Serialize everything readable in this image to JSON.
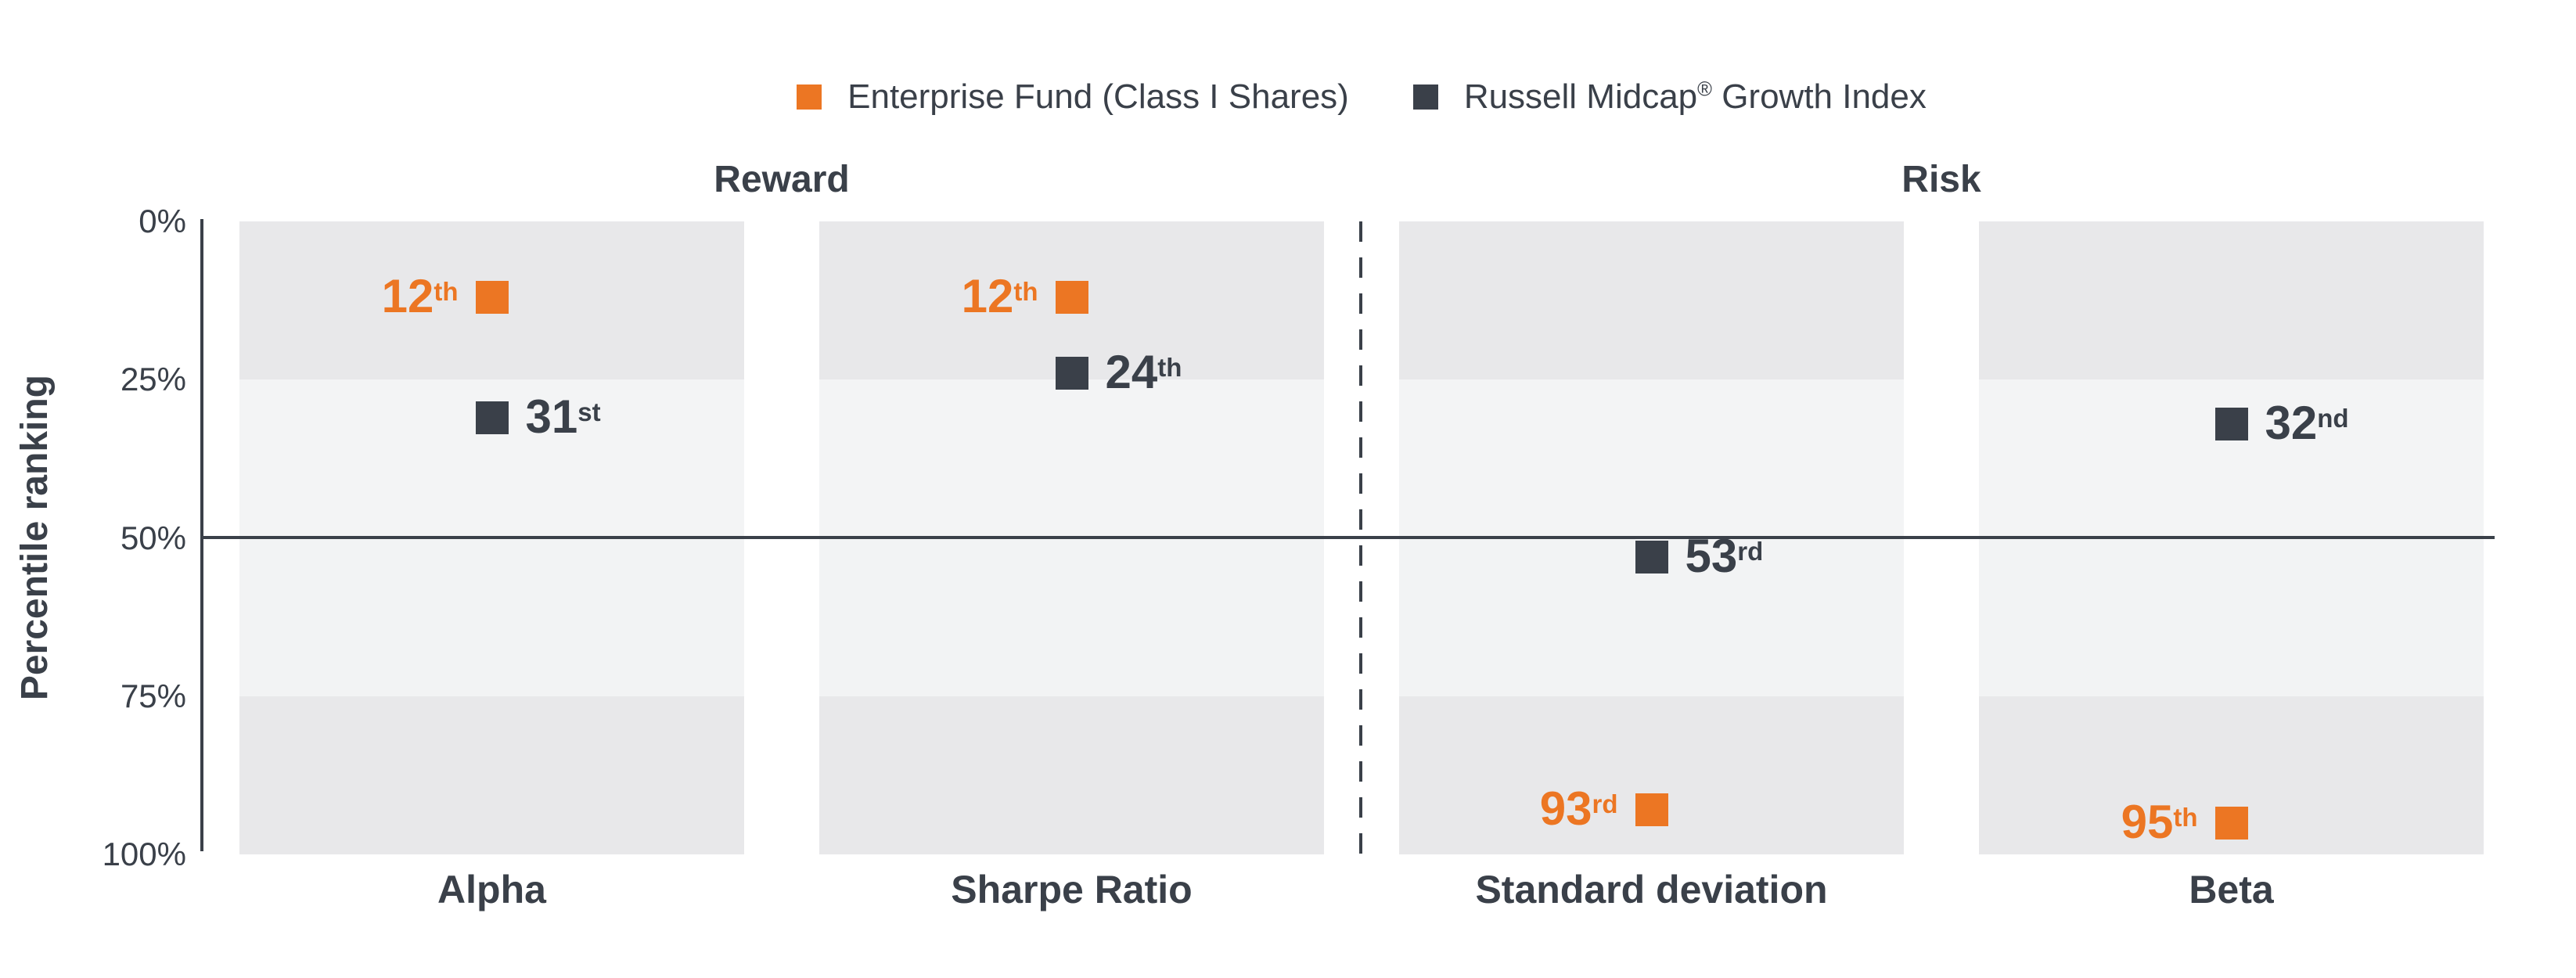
{
  "legend": {
    "items": [
      {
        "label": "Enterprise Fund (Class I Shares)",
        "color": "#EC7623"
      },
      {
        "label_pre": "Russell Midcap",
        "label_sup": "®",
        "label_post": " Growth Index",
        "color": "#3A4049"
      }
    ]
  },
  "chart_data": {
    "type": "scatter",
    "ylabel": "Percentile ranking",
    "xlabel": "",
    "y_axis": {
      "range": [
        0,
        100
      ],
      "inverted": true,
      "ticks": [
        {
          "label": "0%",
          "value": 0
        },
        {
          "label": "25%",
          "value": 25
        },
        {
          "label": "50%",
          "value": 50
        },
        {
          "label": "75%",
          "value": 75
        },
        {
          "label": "100%",
          "value": 100
        }
      ]
    },
    "sections": [
      {
        "label": "Reward",
        "categories": [
          0,
          1
        ]
      },
      {
        "label": "Risk",
        "categories": [
          2,
          3
        ]
      }
    ],
    "categories": [
      "Alpha",
      "Sharpe Ratio",
      "Standard deviation",
      "Beta"
    ],
    "category_slugs": [
      "alpha",
      "sharpe-ratio",
      "standard-deviation",
      "beta"
    ],
    "band_colors": [
      "#E8E8EA",
      "#F3F4F5",
      "#F2F3F4",
      "#E8E8EA"
    ],
    "midline_value": 50,
    "divider_between_categories": [
      1,
      2
    ],
    "series": [
      {
        "name": "Enterprise Fund (Class I Shares)",
        "slug": "enterprise-fund",
        "color": "#EC7623",
        "label_side": "left",
        "values": [
          12,
          12,
          93,
          95
        ],
        "ordinals": [
          "th",
          "th",
          "rd",
          "th"
        ]
      },
      {
        "name": "Russell Midcap® Growth Index",
        "slug": "russell-index",
        "color": "#3A4049",
        "label_side": "right",
        "values": [
          31,
          24,
          53,
          32
        ],
        "ordinals": [
          "st",
          "th",
          "rd",
          "nd"
        ]
      }
    ]
  }
}
